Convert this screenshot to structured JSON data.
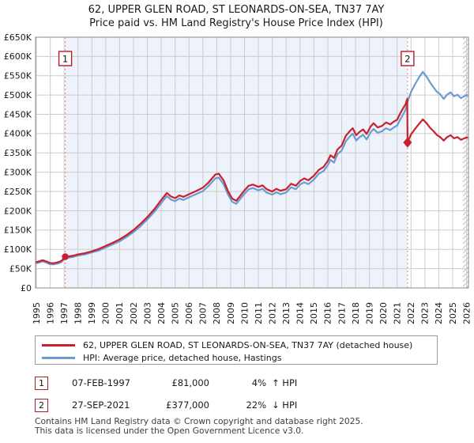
{
  "title": {
    "line1": "62, UPPER GLEN ROAD, ST LEONARDS-ON-SEA, TN37 7AY",
    "line2": "Price paid vs. HM Land Registry's House Price Index (HPI)"
  },
  "chart_data": {
    "type": "line",
    "title": "62, UPPER GLEN ROAD, ST LEONARDS-ON-SEA, TN37 7AY — Price paid vs. HM Land Registry's House Price Index (HPI)",
    "x_axis": {
      "range": [
        1994.94,
        2026.14
      ],
      "ticks": [
        1995,
        1996,
        1997,
        1998,
        1999,
        2000,
        2001,
        2002,
        2003,
        2004,
        2005,
        2006,
        2007,
        2008,
        2009,
        2010,
        2011,
        2012,
        2013,
        2014,
        2015,
        2016,
        2017,
        2018,
        2019,
        2020,
        2021,
        2022,
        2023,
        2024,
        2025,
        2026
      ]
    },
    "y_axis": {
      "max": 650,
      "step": 50,
      "unit": "GBP thousands",
      "labels": [
        "£0",
        "£50K",
        "£100K",
        "£150K",
        "£200K",
        "£250K",
        "£300K",
        "£350K",
        "£400K",
        "£450K",
        "£500K",
        "£550K",
        "£600K",
        "£650K"
      ]
    },
    "shaded_region": [
      1997.08,
      2021.75
    ],
    "future_hatch_start": 2025.75,
    "grid": true,
    "legend_position": "bottom",
    "colors": {
      "grid": "#cccccc",
      "border": "#8a8a8a",
      "shaded_band": "#eef2fa",
      "sale_dashed_line": "#ea8c8c",
      "marker_box_border": "#b01e28",
      "hatch": "#bbbbbb"
    },
    "series": [
      {
        "name": "HPI: Average price, detached house, Hastings",
        "color": "#6b9bd2",
        "points": [
          [
            1995.0,
            64
          ],
          [
            1995.2,
            66
          ],
          [
            1995.45,
            69
          ],
          [
            1995.7,
            66
          ],
          [
            1995.95,
            62
          ],
          [
            1996.2,
            61
          ],
          [
            1996.5,
            63
          ],
          [
            1996.8,
            67
          ],
          [
            1997.08,
            78
          ],
          [
            1997.4,
            79
          ],
          [
            1997.7,
            81
          ],
          [
            1998.0,
            84
          ],
          [
            1998.5,
            87
          ],
          [
            1999.0,
            92
          ],
          [
            1999.5,
            97
          ],
          [
            2000.0,
            105
          ],
          [
            2000.5,
            113
          ],
          [
            2001.0,
            121
          ],
          [
            2001.5,
            132
          ],
          [
            2002.0,
            145
          ],
          [
            2002.5,
            160
          ],
          [
            2003.0,
            178
          ],
          [
            2003.5,
            197
          ],
          [
            2004.0,
            220
          ],
          [
            2004.4,
            238
          ],
          [
            2004.7,
            229
          ],
          [
            2005.0,
            225
          ],
          [
            2005.3,
            232
          ],
          [
            2005.6,
            228
          ],
          [
            2006.0,
            235
          ],
          [
            2006.5,
            243
          ],
          [
            2007.0,
            251
          ],
          [
            2007.4,
            264
          ],
          [
            2007.9,
            284
          ],
          [
            2008.15,
            286
          ],
          [
            2008.5,
            268
          ],
          [
            2008.8,
            243
          ],
          [
            2009.1,
            224
          ],
          [
            2009.4,
            218
          ],
          [
            2009.7,
            231
          ],
          [
            2010.0,
            244
          ],
          [
            2010.3,
            256
          ],
          [
            2010.6,
            259
          ],
          [
            2011.0,
            253
          ],
          [
            2011.3,
            257
          ],
          [
            2011.6,
            247
          ],
          [
            2012.0,
            242
          ],
          [
            2012.3,
            248
          ],
          [
            2012.6,
            243
          ],
          [
            2013.0,
            247
          ],
          [
            2013.35,
            261
          ],
          [
            2013.7,
            256
          ],
          [
            2014.0,
            268
          ],
          [
            2014.3,
            274
          ],
          [
            2014.6,
            269
          ],
          [
            2015.0,
            281
          ],
          [
            2015.35,
            296
          ],
          [
            2015.7,
            303
          ],
          [
            2016.0,
            318
          ],
          [
            2016.2,
            332
          ],
          [
            2016.45,
            325
          ],
          [
            2016.7,
            347
          ],
          [
            2017.0,
            356
          ],
          [
            2017.3,
            380
          ],
          [
            2017.6,
            393
          ],
          [
            2017.8,
            400
          ],
          [
            2018.05,
            382
          ],
          [
            2018.3,
            391
          ],
          [
            2018.55,
            397
          ],
          [
            2018.8,
            385
          ],
          [
            2019.1,
            404
          ],
          [
            2019.3,
            412
          ],
          [
            2019.6,
            402
          ],
          [
            2019.9,
            406
          ],
          [
            2020.2,
            414
          ],
          [
            2020.5,
            409
          ],
          [
            2020.8,
            417
          ],
          [
            2021.0,
            421
          ],
          [
            2021.2,
            435
          ],
          [
            2021.45,
            451
          ],
          [
            2021.6,
            462
          ],
          [
            2021.75,
            483
          ],
          [
            2022.0,
            508
          ],
          [
            2022.3,
            529
          ],
          [
            2022.6,
            547
          ],
          [
            2022.85,
            560
          ],
          [
            2023.1,
            549
          ],
          [
            2023.35,
            534
          ],
          [
            2023.6,
            521
          ],
          [
            2023.85,
            509
          ],
          [
            2024.1,
            502
          ],
          [
            2024.35,
            490
          ],
          [
            2024.6,
            501
          ],
          [
            2024.85,
            507
          ],
          [
            2025.1,
            497
          ],
          [
            2025.35,
            501
          ],
          [
            2025.6,
            492
          ],
          [
            2025.85,
            497
          ],
          [
            2026.05,
            500
          ]
        ]
      },
      {
        "name": "62, UPPER GLEN ROAD, ST LEONARDS-ON-SEA, TN37 7AY (detached house)",
        "color": "#c9202e",
        "points": [
          [
            1995.0,
            67
          ],
          [
            1995.2,
            69
          ],
          [
            1995.45,
            72
          ],
          [
            1995.7,
            69
          ],
          [
            1995.95,
            65
          ],
          [
            1996.2,
            64
          ],
          [
            1996.5,
            66
          ],
          [
            1996.8,
            70
          ],
          [
            1997.08,
            81
          ],
          [
            1997.4,
            82
          ],
          [
            1997.7,
            84
          ],
          [
            1998.0,
            87
          ],
          [
            1998.5,
            90
          ],
          [
            1999.0,
            95
          ],
          [
            1999.5,
            101
          ],
          [
            2000.0,
            109
          ],
          [
            2000.5,
            117
          ],
          [
            2001.0,
            126
          ],
          [
            2001.5,
            137
          ],
          [
            2002.0,
            150
          ],
          [
            2002.5,
            166
          ],
          [
            2003.0,
            184
          ],
          [
            2003.5,
            204
          ],
          [
            2004.0,
            228
          ],
          [
            2004.4,
            246
          ],
          [
            2004.7,
            237
          ],
          [
            2005.0,
            233
          ],
          [
            2005.3,
            240
          ],
          [
            2005.6,
            236
          ],
          [
            2006.0,
            243
          ],
          [
            2006.5,
            251
          ],
          [
            2007.0,
            260
          ],
          [
            2007.4,
            273
          ],
          [
            2007.9,
            294
          ],
          [
            2008.15,
            296
          ],
          [
            2008.5,
            278
          ],
          [
            2008.8,
            252
          ],
          [
            2009.1,
            232
          ],
          [
            2009.4,
            226
          ],
          [
            2009.7,
            239
          ],
          [
            2010.0,
            253
          ],
          [
            2010.3,
            265
          ],
          [
            2010.6,
            268
          ],
          [
            2011.0,
            262
          ],
          [
            2011.3,
            266
          ],
          [
            2011.6,
            256
          ],
          [
            2012.0,
            250
          ],
          [
            2012.3,
            257
          ],
          [
            2012.6,
            252
          ],
          [
            2013.0,
            256
          ],
          [
            2013.35,
            270
          ],
          [
            2013.7,
            265
          ],
          [
            2014.0,
            277
          ],
          [
            2014.3,
            284
          ],
          [
            2014.6,
            279
          ],
          [
            2015.0,
            291
          ],
          [
            2015.35,
            306
          ],
          [
            2015.7,
            314
          ],
          [
            2016.0,
            329
          ],
          [
            2016.2,
            344
          ],
          [
            2016.45,
            337
          ],
          [
            2016.7,
            359
          ],
          [
            2017.0,
            369
          ],
          [
            2017.3,
            394
          ],
          [
            2017.6,
            407
          ],
          [
            2017.8,
            414
          ],
          [
            2018.05,
            396
          ],
          [
            2018.3,
            405
          ],
          [
            2018.55,
            411
          ],
          [
            2018.8,
            399
          ],
          [
            2019.1,
            419
          ],
          [
            2019.3,
            427
          ],
          [
            2019.6,
            416
          ],
          [
            2019.9,
            420
          ],
          [
            2020.2,
            429
          ],
          [
            2020.5,
            424
          ],
          [
            2020.8,
            432
          ],
          [
            2021.0,
            436
          ],
          [
            2021.2,
            451
          ],
          [
            2021.45,
            467
          ],
          [
            2021.6,
            476
          ],
          [
            2021.73,
            490
          ],
          [
            2021.75,
            377
          ],
          [
            2022.0,
            398
          ],
          [
            2022.3,
            413
          ],
          [
            2022.6,
            426
          ],
          [
            2022.85,
            437
          ],
          [
            2023.1,
            428
          ],
          [
            2023.35,
            416
          ],
          [
            2023.6,
            407
          ],
          [
            2023.85,
            397
          ],
          [
            2024.1,
            391
          ],
          [
            2024.35,
            382
          ],
          [
            2024.6,
            391
          ],
          [
            2024.85,
            396
          ],
          [
            2025.1,
            388
          ],
          [
            2025.35,
            391
          ],
          [
            2025.6,
            384
          ],
          [
            2025.85,
            388
          ],
          [
            2026.05,
            390
          ]
        ]
      }
    ],
    "sale_markers": [
      {
        "label": "1",
        "year": 1997.08,
        "value": 81,
        "shape": "circle"
      },
      {
        "label": "2",
        "year": 2021.75,
        "value": 377,
        "shape": "diamond"
      }
    ]
  },
  "legend": {
    "entries": [
      {
        "label": "62, UPPER GLEN ROAD, ST LEONARDS-ON-SEA, TN37 7AY (detached house)",
        "color": "#c9202e"
      },
      {
        "label": "HPI: Average price, detached house, Hastings",
        "color": "#6b9bd2"
      }
    ]
  },
  "sales_table": {
    "rows": [
      {
        "num": "1",
        "date": "07-FEB-1997",
        "price": "£81,000",
        "pct": "4%",
        "dir": "↑",
        "hpi_label": "HPI"
      },
      {
        "num": "2",
        "date": "27-SEP-2021",
        "price": "£377,000",
        "pct": "22%",
        "dir": "↓",
        "hpi_label": "HPI"
      }
    ]
  },
  "footer": {
    "line1": "Contains HM Land Registry data © Crown copyright and database right 2025.",
    "line2": "This data is licensed under the Open Government Licence v3.0."
  }
}
